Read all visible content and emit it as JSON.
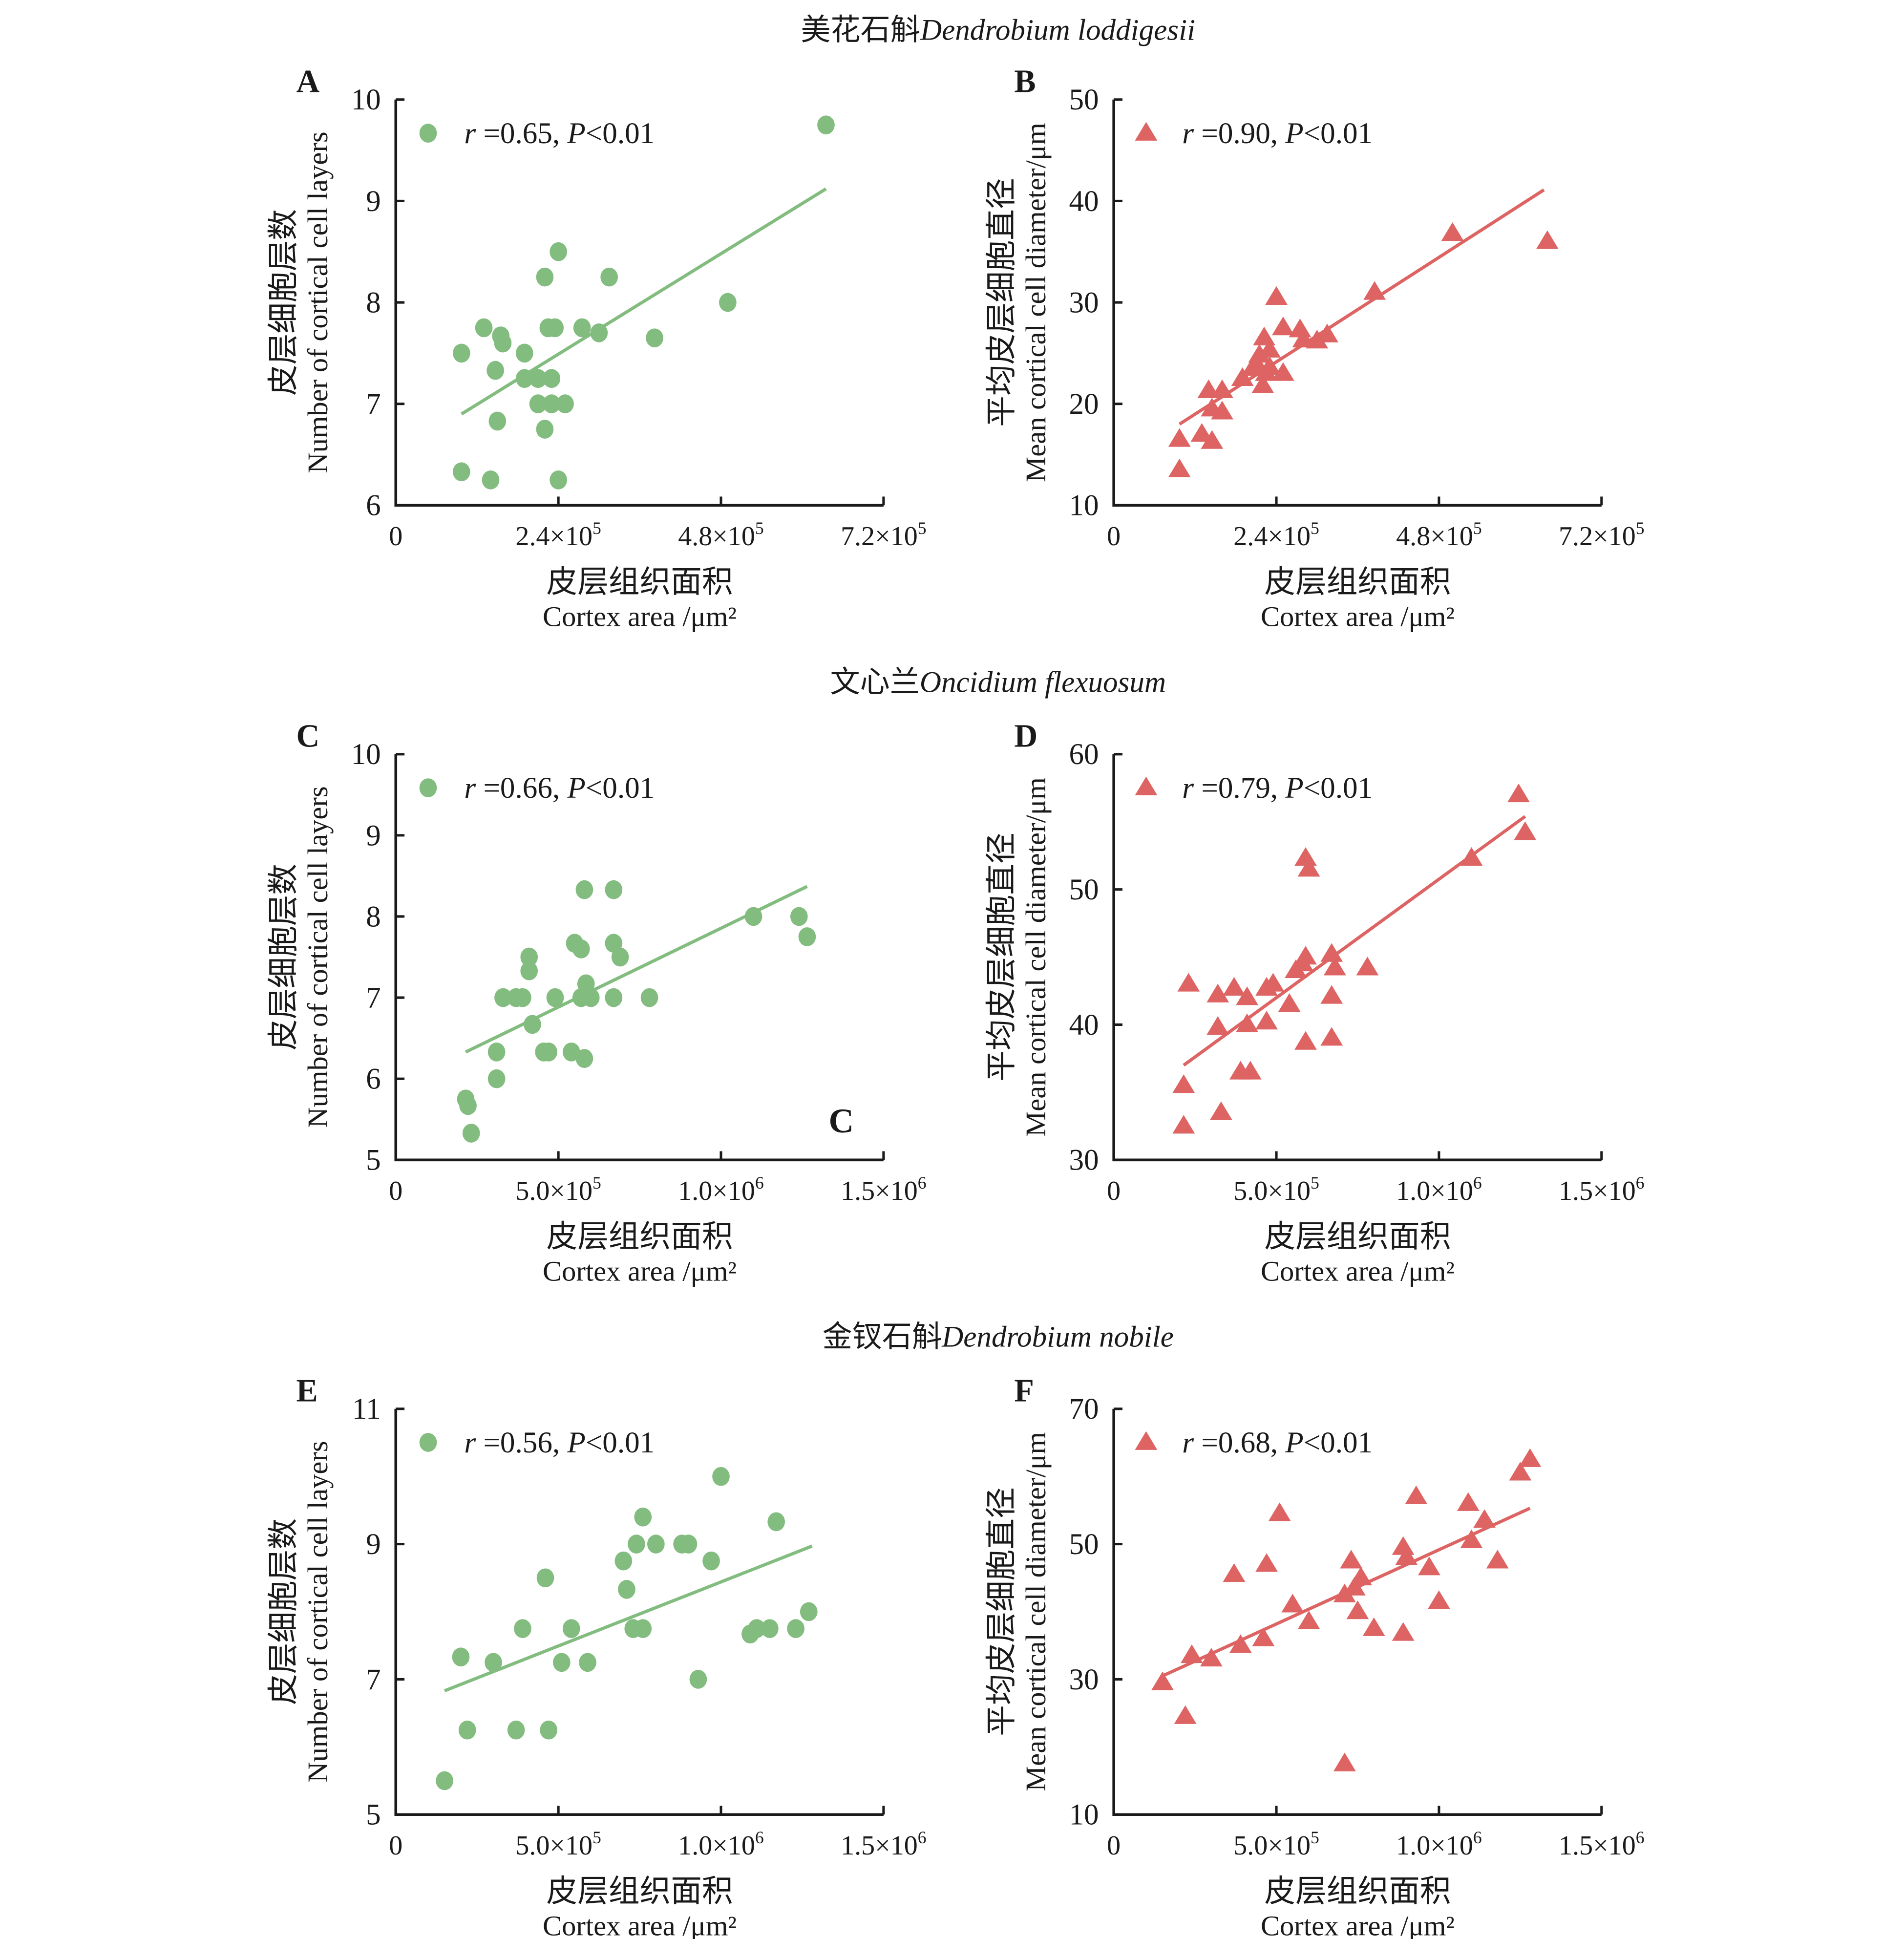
{
  "figure": {
    "group_titles": [
      {
        "cn": "美花石斛",
        "latin": "Dendrobium loddigesii"
      },
      {
        "cn": "文心兰",
        "latin": "Oncidium flexuosum"
      },
      {
        "cn": "金钗石斛",
        "latin": "Dendrobium nobile"
      }
    ],
    "stray_label": "C"
  },
  "colors": {
    "green": "#82bc7f",
    "red": "#de6464",
    "axis": "#1a1a1a"
  },
  "chart_data": [
    {
      "panel": "A",
      "type": "scatter",
      "marker": "circle",
      "color": "#82bc7f",
      "group": "Dendrobium loddigesii",
      "annotation": {
        "r": "0.65",
        "p": "0.01"
      },
      "xlabel_cn": "皮层组织面积",
      "xlabel": "Cortex area /μm²",
      "ylabel_cn": "皮层细胞层数",
      "ylabel": "Number of cortical cell layers",
      "xlim": [
        0,
        720000
      ],
      "ylim": [
        6,
        10
      ],
      "xticks": [
        0,
        240000,
        480000,
        720000
      ],
      "xtick_labels": [
        {
          "m": "0",
          "e": ""
        },
        {
          "m": "2.4×10",
          "e": "5"
        },
        {
          "m": "4.8×10",
          "e": "5"
        },
        {
          "m": "7.2×10",
          "e": "5"
        }
      ],
      "yticks": [
        6,
        7,
        8,
        9,
        10
      ],
      "ytick_labels": [
        "6",
        "7",
        "8",
        "9",
        "10"
      ],
      "fit": [
        [
          97000,
          6.9
        ],
        [
          635000,
          9.12
        ]
      ],
      "points": [
        [
          635000,
          9.75
        ],
        [
          240000,
          8.5
        ],
        [
          220000,
          8.25
        ],
        [
          315000,
          8.25
        ],
        [
          490000,
          8.0
        ],
        [
          130000,
          7.75
        ],
        [
          225000,
          7.75
        ],
        [
          235000,
          7.75
        ],
        [
          275000,
          7.75
        ],
        [
          300000,
          7.7
        ],
        [
          155000,
          7.67
        ],
        [
          158000,
          7.6
        ],
        [
          382000,
          7.65
        ],
        [
          97000,
          7.5
        ],
        [
          190000,
          7.5
        ],
        [
          147000,
          7.33
        ],
        [
          190000,
          7.25
        ],
        [
          210000,
          7.25
        ],
        [
          230000,
          7.25
        ],
        [
          210000,
          7.0
        ],
        [
          230000,
          7.0
        ],
        [
          250000,
          7.0
        ],
        [
          150000,
          6.83
        ],
        [
          220000,
          6.75
        ],
        [
          97000,
          6.33
        ],
        [
          140000,
          6.25
        ],
        [
          240000,
          6.25
        ]
      ]
    },
    {
      "panel": "B",
      "type": "scatter",
      "marker": "triangle",
      "color": "#de6464",
      "group": "Dendrobium loddigesii",
      "annotation": {
        "r": "0.90",
        "p": "0.01"
      },
      "xlabel_cn": "皮层组织面积",
      "xlabel": "Cortex area /μm²",
      "ylabel_cn": "平均皮层细胞直径",
      "ylabel": "Mean cortical cell diameter/μm",
      "xlim": [
        0,
        720000
      ],
      "ylim": [
        10,
        50
      ],
      "xticks": [
        0,
        240000,
        480000,
        720000
      ],
      "xtick_labels": [
        {
          "m": "0",
          "e": ""
        },
        {
          "m": "2.4×10",
          "e": "5"
        },
        {
          "m": "4.8×10",
          "e": "5"
        },
        {
          "m": "7.2×10",
          "e": "5"
        }
      ],
      "yticks": [
        10,
        20,
        30,
        40,
        50
      ],
      "ytick_labels": [
        "10",
        "20",
        "30",
        "40",
        "50"
      ],
      "fit": [
        [
          97000,
          18.0
        ],
        [
          635000,
          41.1
        ]
      ],
      "points": [
        [
          97000,
          13.5
        ],
        [
          97000,
          16.5
        ],
        [
          130000,
          17.0
        ],
        [
          145000,
          16.3
        ],
        [
          140000,
          21.3
        ],
        [
          160000,
          21.3
        ],
        [
          145000,
          19.5
        ],
        [
          160000,
          19.2
        ],
        [
          190000,
          22.5
        ],
        [
          210000,
          24.0
        ],
        [
          205000,
          23.5
        ],
        [
          220000,
          21.8
        ],
        [
          225000,
          23.0
        ],
        [
          222000,
          26.5
        ],
        [
          230000,
          25.3
        ],
        [
          240000,
          30.5
        ],
        [
          250000,
          23.0
        ],
        [
          250000,
          27.5
        ],
        [
          275000,
          27.3
        ],
        [
          280000,
          26.3
        ],
        [
          300000,
          26.2
        ],
        [
          315000,
          26.8
        ],
        [
          385000,
          31.0
        ],
        [
          500000,
          36.8
        ],
        [
          640000,
          36.0
        ],
        [
          215000,
          24.8
        ],
        [
          230000,
          23.6
        ]
      ]
    },
    {
      "panel": "C",
      "type": "scatter",
      "marker": "circle",
      "color": "#82bc7f",
      "group": "Oncidium flexuosum",
      "annotation": {
        "r": "0.66",
        "p": "0.01"
      },
      "xlabel_cn": "皮层组织面积",
      "xlabel": "Cortex area /μm²",
      "ylabel_cn": "皮层细胞层数",
      "ylabel": "Number of cortical cell layers",
      "xlim": [
        0,
        1500000
      ],
      "ylim": [
        5,
        10
      ],
      "xticks": [
        0,
        500000,
        1000000,
        1500000
      ],
      "xtick_labels": [
        {
          "m": "0",
          "e": ""
        },
        {
          "m": "5.0×10",
          "e": "5"
        },
        {
          "m": "1.0×10",
          "e": "6"
        },
        {
          "m": "1.5×10",
          "e": "6"
        }
      ],
      "yticks": [
        5,
        6,
        7,
        8,
        9,
        10
      ],
      "ytick_labels": [
        "5",
        "6",
        "7",
        "8",
        "9",
        "10"
      ],
      "fit": [
        [
          215000,
          6.33
        ],
        [
          1265000,
          8.37
        ]
      ],
      "points": [
        [
          215000,
          5.75
        ],
        [
          222000,
          5.67
        ],
        [
          232000,
          5.33
        ],
        [
          310000,
          6.0
        ],
        [
          310000,
          6.33
        ],
        [
          455000,
          6.33
        ],
        [
          470000,
          6.33
        ],
        [
          540000,
          6.33
        ],
        [
          580000,
          6.25
        ],
        [
          420000,
          6.67
        ],
        [
          330000,
          7.0
        ],
        [
          370000,
          7.0
        ],
        [
          390000,
          7.0
        ],
        [
          490000,
          7.0
        ],
        [
          570000,
          7.0
        ],
        [
          600000,
          7.0
        ],
        [
          670000,
          7.0
        ],
        [
          780000,
          7.0
        ],
        [
          585000,
          7.17
        ],
        [
          410000,
          7.33
        ],
        [
          410000,
          7.5
        ],
        [
          690000,
          7.5
        ],
        [
          550000,
          7.67
        ],
        [
          670000,
          7.67
        ],
        [
          570000,
          7.6
        ],
        [
          580000,
          8.33
        ],
        [
          670000,
          8.33
        ],
        [
          1100000,
          8.0
        ],
        [
          1240000,
          8.0
        ],
        [
          1265000,
          7.75
        ]
      ]
    },
    {
      "panel": "D",
      "type": "scatter",
      "marker": "triangle",
      "color": "#de6464",
      "group": "Oncidium flexuosum",
      "annotation": {
        "r": "0.79",
        "p": "0.01"
      },
      "xlabel_cn": "皮层组织面积",
      "xlabel": "Cortex area /μm²",
      "ylabel_cn": "平均皮层细胞直径",
      "ylabel": "Mean cortical cell diameter/μm",
      "xlim": [
        0,
        1500000
      ],
      "ylim": [
        30,
        60
      ],
      "xticks": [
        0,
        500000,
        1000000,
        1500000
      ],
      "xtick_labels": [
        {
          "m": "0",
          "e": ""
        },
        {
          "m": "5.0×10",
          "e": "5"
        },
        {
          "m": "1.0×10",
          "e": "6"
        },
        {
          "m": "1.5×10",
          "e": "6"
        }
      ],
      "yticks": [
        30,
        40,
        50,
        60
      ],
      "ytick_labels": [
        "30",
        "40",
        "50",
        "60"
      ],
      "fit": [
        [
          215000,
          37.0
        ],
        [
          1265000,
          55.4
        ]
      ],
      "points": [
        [
          215000,
          32.5
        ],
        [
          215000,
          35.5
        ],
        [
          330000,
          33.5
        ],
        [
          230000,
          43.0
        ],
        [
          320000,
          42.2
        ],
        [
          370000,
          42.7
        ],
        [
          410000,
          42.0
        ],
        [
          470000,
          42.7
        ],
        [
          490000,
          43.0
        ],
        [
          320000,
          39.8
        ],
        [
          410000,
          40.0
        ],
        [
          470000,
          40.2
        ],
        [
          390000,
          36.5
        ],
        [
          420000,
          36.5
        ],
        [
          540000,
          41.5
        ],
        [
          560000,
          44.0
        ],
        [
          580000,
          44.5
        ],
        [
          590000,
          45.0
        ],
        [
          590000,
          38.7
        ],
        [
          670000,
          45.2
        ],
        [
          680000,
          44.2
        ],
        [
          670000,
          42.1
        ],
        [
          670000,
          39.0
        ],
        [
          780000,
          44.2
        ],
        [
          590000,
          52.3
        ],
        [
          600000,
          51.5
        ],
        [
          1100000,
          52.3
        ],
        [
          1245000,
          57.0
        ],
        [
          1265000,
          54.2
        ]
      ]
    },
    {
      "panel": "E",
      "type": "scatter",
      "marker": "circle",
      "color": "#82bc7f",
      "group": "Dendrobium nobile",
      "annotation": {
        "r": "0.56",
        "p": "0.01"
      },
      "xlabel_cn": "皮层组织面积",
      "xlabel": "Cortex area /μm²",
      "ylabel_cn": "皮层细胞层数",
      "ylabel": "Number of cortical cell layers",
      "xlim": [
        0,
        1500000
      ],
      "ylim": [
        5,
        11
      ],
      "xticks": [
        0,
        500000,
        1000000,
        1500000
      ],
      "xtick_labels": [
        {
          "m": "0",
          "e": ""
        },
        {
          "m": "5.0×10",
          "e": "5"
        },
        {
          "m": "1.0×10",
          "e": "6"
        },
        {
          "m": "1.5×10",
          "e": "6"
        }
      ],
      "yticks": [
        5,
        7,
        9,
        11
      ],
      "ytick_labels": [
        "5",
        "7",
        "9",
        "11"
      ],
      "fit": [
        [
          150000,
          6.83
        ],
        [
          1280000,
          8.97
        ]
      ],
      "points": [
        [
          150000,
          5.5
        ],
        [
          220000,
          6.25
        ],
        [
          370000,
          6.25
        ],
        [
          470000,
          6.25
        ],
        [
          200000,
          7.33
        ],
        [
          300000,
          7.25
        ],
        [
          510000,
          7.25
        ],
        [
          590000,
          7.25
        ],
        [
          390000,
          7.75
        ],
        [
          540000,
          7.75
        ],
        [
          730000,
          7.75
        ],
        [
          760000,
          7.75
        ],
        [
          460000,
          8.5
        ],
        [
          710000,
          8.33
        ],
        [
          700000,
          8.75
        ],
        [
          740000,
          9.0
        ],
        [
          800000,
          9.0
        ],
        [
          880000,
          9.0
        ],
        [
          900000,
          9.0
        ],
        [
          970000,
          8.75
        ],
        [
          760000,
          9.4
        ],
        [
          1000000,
          10.0
        ],
        [
          1170000,
          9.33
        ],
        [
          930000,
          7.0
        ],
        [
          1090000,
          7.67
        ],
        [
          1110000,
          7.75
        ],
        [
          1150000,
          7.75
        ],
        [
          1230000,
          7.75
        ],
        [
          1270000,
          8.0
        ]
      ]
    },
    {
      "panel": "F",
      "type": "scatter",
      "marker": "triangle",
      "color": "#de6464",
      "group": "Dendrobium nobile",
      "annotation": {
        "r": "0.68",
        "p": "0.01"
      },
      "xlabel_cn": "皮层组织面积",
      "xlabel": "Cortex area /μm²",
      "ylabel_cn": "平均皮层细胞直径",
      "ylabel": "Mean cortical cell diameter/μm",
      "xlim": [
        0,
        1500000
      ],
      "ylim": [
        10,
        70
      ],
      "xticks": [
        0,
        500000,
        1000000,
        1500000
      ],
      "xtick_labels": [
        {
          "m": "0",
          "e": ""
        },
        {
          "m": "5.0×10",
          "e": "5"
        },
        {
          "m": "1.0×10",
          "e": "6"
        },
        {
          "m": "1.5×10",
          "e": "6"
        }
      ],
      "yticks": [
        10,
        30,
        50,
        70
      ],
      "ytick_labels": [
        "10",
        "30",
        "50",
        "70"
      ],
      "fit": [
        [
          150000,
          30.5
        ],
        [
          1280000,
          55.3
        ]
      ],
      "points": [
        [
          150000,
          29.5
        ],
        [
          220000,
          24.5
        ],
        [
          240000,
          33.5
        ],
        [
          300000,
          33.0
        ],
        [
          390000,
          35.0
        ],
        [
          460000,
          36.0
        ],
        [
          370000,
          45.5
        ],
        [
          470000,
          47.0
        ],
        [
          510000,
          54.5
        ],
        [
          550000,
          41.0
        ],
        [
          600000,
          38.5
        ],
        [
          710000,
          42.5
        ],
        [
          730000,
          47.5
        ],
        [
          740000,
          43.5
        ],
        [
          760000,
          45.0
        ],
        [
          750000,
          40.0
        ],
        [
          800000,
          37.5
        ],
        [
          710000,
          17.5
        ],
        [
          890000,
          49.5
        ],
        [
          900000,
          48.0
        ],
        [
          890000,
          36.8
        ],
        [
          930000,
          57.0
        ],
        [
          970000,
          46.5
        ],
        [
          1000000,
          41.5
        ],
        [
          1090000,
          56.0
        ],
        [
          1100000,
          50.5
        ],
        [
          1140000,
          53.5
        ],
        [
          1180000,
          47.5
        ],
        [
          1250000,
          60.5
        ],
        [
          1280000,
          62.5
        ]
      ]
    }
  ]
}
